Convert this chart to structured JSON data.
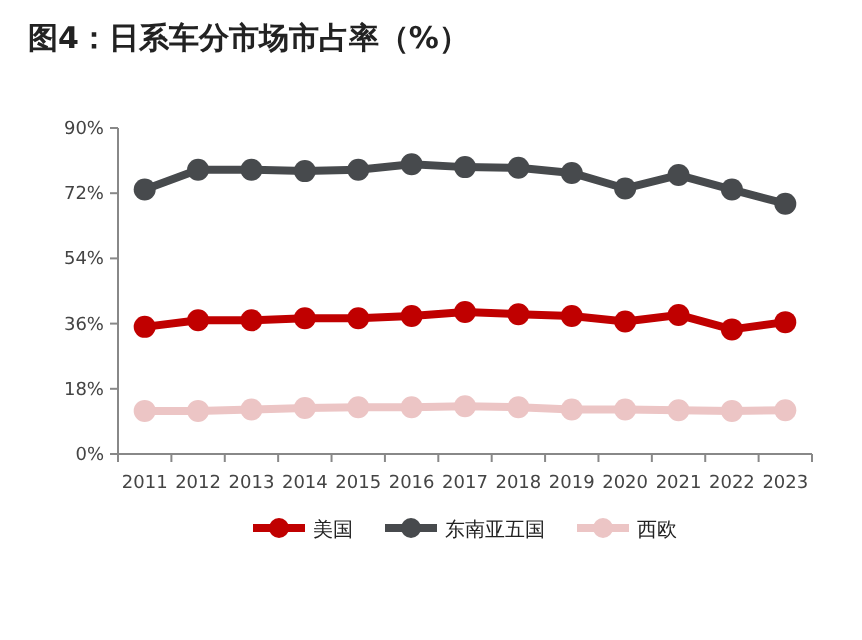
{
  "chart_data": {
    "type": "line",
    "title": "图4：日系车分市场市占率（%）",
    "categories": [
      "2011",
      "2012",
      "2013",
      "2014",
      "2015",
      "2016",
      "2017",
      "2018",
      "2019",
      "2020",
      "2021",
      "2022",
      "2023"
    ],
    "series": [
      {
        "name": "美国",
        "color": "#c00000",
        "values": [
          35.1,
          36.9,
          36.9,
          37.5,
          37.5,
          38.1,
          39.2,
          38.6,
          38.1,
          36.6,
          38.4,
          34.4,
          36.4
        ]
      },
      {
        "name": "东南亚五国",
        "color": "#474a4d",
        "values": [
          73.0,
          78.5,
          78.5,
          78.1,
          78.5,
          80.0,
          79.2,
          79.0,
          77.6,
          73.3,
          77.0,
          73.0,
          69.1
        ]
      },
      {
        "name": "西欧",
        "color": "#ecc5c5",
        "values": [
          11.9,
          11.9,
          12.3,
          12.7,
          12.9,
          12.9,
          13.2,
          12.9,
          12.3,
          12.3,
          12.1,
          11.9,
          12.1
        ]
      }
    ],
    "ylim": [
      0,
      90
    ],
    "yticks": [
      {
        "value": 0,
        "label": "0%"
      },
      {
        "value": 18,
        "label": "18%"
      },
      {
        "value": 36,
        "label": "36%"
      },
      {
        "value": 54,
        "label": "54%"
      },
      {
        "value": 72,
        "label": "72%"
      },
      {
        "value": 90,
        "label": "90%"
      }
    ],
    "legend": "bottom",
    "marker": "circle",
    "line_style": "solid",
    "grid": false
  }
}
